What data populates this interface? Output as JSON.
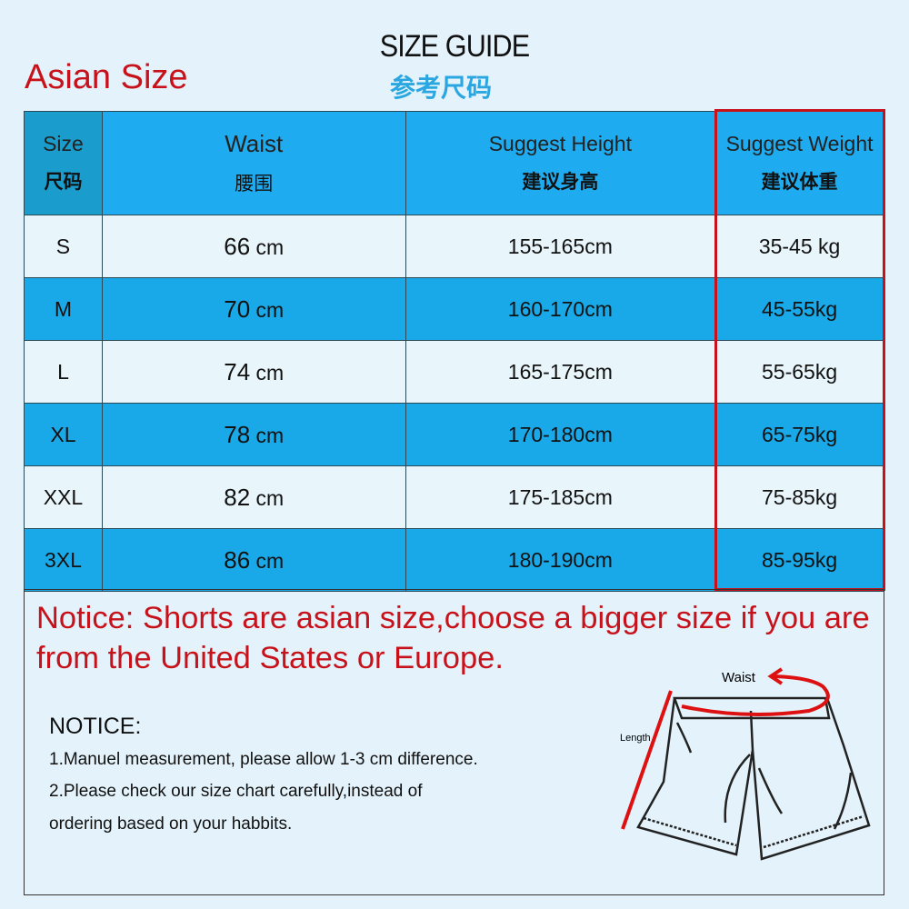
{
  "header": {
    "title": "SIZE GUIDE",
    "subtitle": "参考尺码",
    "region_label": "Asian Size"
  },
  "table": {
    "columns": [
      {
        "en": "Size",
        "cn": "尺码"
      },
      {
        "en": "Waist",
        "cn": "腰围"
      },
      {
        "en": "Suggest Height",
        "cn": "建议身高"
      },
      {
        "en": "Suggest Weight",
        "cn": "建议体重"
      }
    ],
    "rows": [
      {
        "size": "S",
        "waist": "66",
        "unit": "cm",
        "height": "155-165cm",
        "weight": "35-45 kg"
      },
      {
        "size": "M",
        "waist": "70",
        "unit": "cm",
        "height": "160-170cm",
        "weight": "45-55kg"
      },
      {
        "size": "L",
        "waist": "74",
        "unit": "cm",
        "height": "165-175cm",
        "weight": "55-65kg"
      },
      {
        "size": "XL",
        "waist": "78",
        "unit": "cm",
        "height": "170-180cm",
        "weight": "65-75kg"
      },
      {
        "size": "XXL",
        "waist": "82",
        "unit": "cm",
        "height": "175-185cm",
        "weight": "75-85kg"
      },
      {
        "size": "3XL",
        "waist": "86",
        "unit": "cm",
        "height": "180-190cm",
        "weight": "85-95kg"
      }
    ]
  },
  "notice_banner": "Notice: Shorts are asian size,choose a bigger size if you are from the United States or Europe.",
  "notes": {
    "heading": "NOTICE:",
    "lines": [
      "1.Manuel measurement, please allow 1-3 cm difference.",
      "2.Please check our size chart carefully,instead of",
      "ordering based on your habbits."
    ]
  },
  "diagram": {
    "waist_label": "Waist",
    "length_label": "Length"
  },
  "colors": {
    "accent_red": "#c8121b",
    "row_blue": "#1aa9e8",
    "row_light": "#e8f5fb"
  }
}
